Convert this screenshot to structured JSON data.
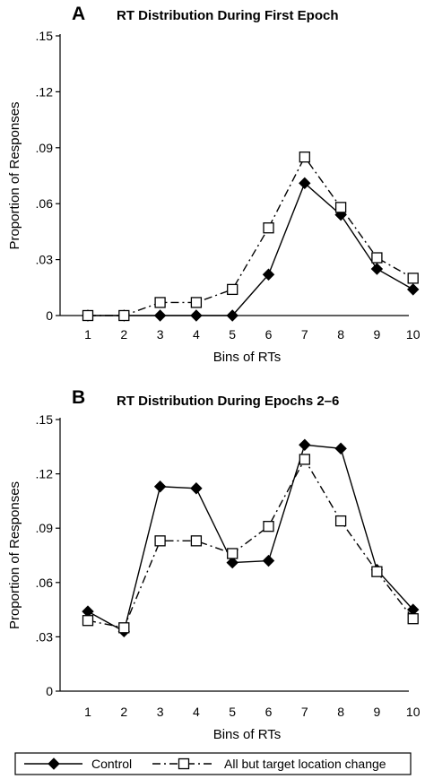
{
  "chart_data": [
    {
      "type": "line",
      "panel_letter": "A",
      "title": "RT Distribution During First Epoch",
      "xlabel": "Bins of RTs",
      "ylabel": "Proportion of Responses",
      "categories": [
        "1",
        "2",
        "3",
        "4",
        "5",
        "6",
        "7",
        "8",
        "9",
        "10"
      ],
      "ylim": [
        0,
        0.15
      ],
      "yticks": [
        0,
        0.03,
        0.06,
        0.09,
        0.12,
        0.15
      ],
      "ytick_labels": [
        "0",
        ".03",
        ".06",
        ".09",
        ".12",
        ".15"
      ],
      "grid": false,
      "series": [
        {
          "name": "Control",
          "marker": "filled-diamond",
          "line": "solid",
          "color": "#000000",
          "values": [
            0,
            0,
            0,
            0,
            0,
            0.022,
            0.071,
            0.054,
            0.025,
            0.014
          ]
        },
        {
          "name": "All but target location change",
          "marker": "open-square",
          "line": "dash-dot",
          "color": "#000000",
          "values": [
            0,
            0,
            0.007,
            0.007,
            0.014,
            0.047,
            0.085,
            0.058,
            0.031,
            0.02
          ]
        }
      ]
    },
    {
      "type": "line",
      "panel_letter": "B",
      "title": "RT Distribution During Epochs 2–6",
      "xlabel": "Bins of RTs",
      "ylabel": "Proportion of Responses",
      "categories": [
        "1",
        "2",
        "3",
        "4",
        "5",
        "6",
        "7",
        "8",
        "9",
        "10"
      ],
      "ylim": [
        0,
        0.15
      ],
      "yticks": [
        0,
        0.03,
        0.06,
        0.09,
        0.12,
        0.15
      ],
      "ytick_labels": [
        "0",
        ".03",
        ".06",
        ".09",
        ".12",
        ".15"
      ],
      "grid": false,
      "series": [
        {
          "name": "Control",
          "marker": "filled-diamond",
          "line": "solid",
          "color": "#000000",
          "values": [
            0.044,
            0.033,
            0.113,
            0.112,
            0.071,
            0.072,
            0.136,
            0.134,
            0.067,
            0.045
          ]
        },
        {
          "name": "All but target location change",
          "marker": "open-square",
          "line": "dash-dot",
          "color": "#000000",
          "values": [
            0.039,
            0.035,
            0.083,
            0.083,
            0.076,
            0.091,
            0.128,
            0.094,
            0.066,
            0.04
          ]
        }
      ]
    }
  ],
  "legend": {
    "placement": "bottom",
    "items": [
      {
        "label": "Control",
        "marker": "filled-diamond",
        "line": "solid"
      },
      {
        "label": "All but target location change",
        "marker": "open-square",
        "line": "dash-dot"
      }
    ]
  }
}
